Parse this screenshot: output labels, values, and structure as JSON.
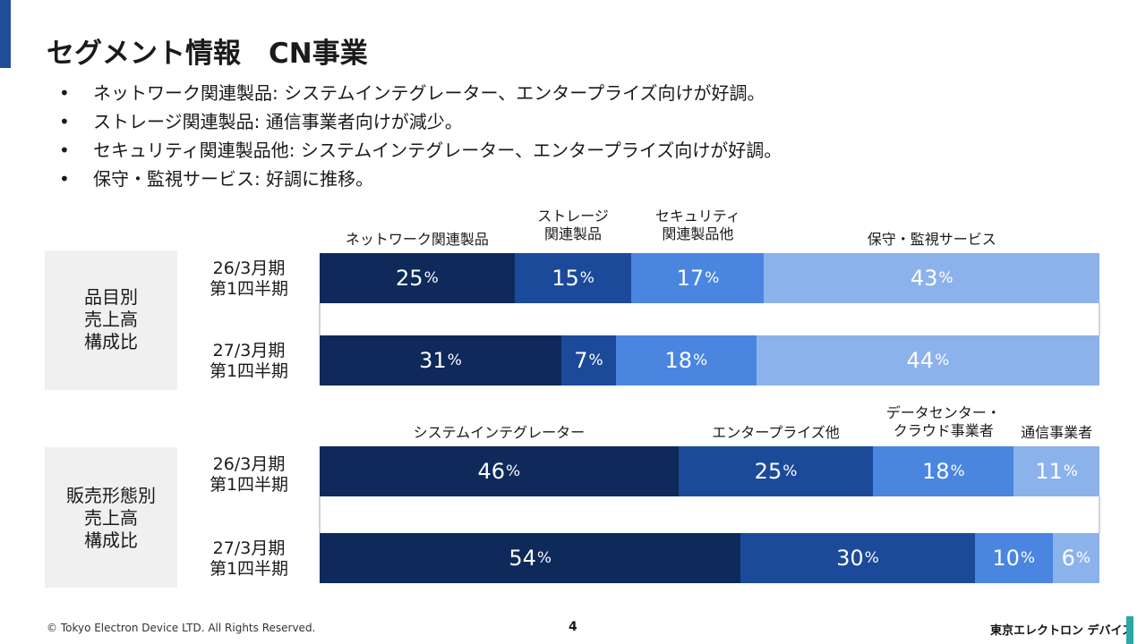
{
  "header": {
    "title": "セグメント情報　CN事業"
  },
  "bullets": [
    "ネットワーク関連製品: システムインテグレーター、エンタープライズ向けが好調。",
    "ストレージ関連製品: 通信事業者向けが減少。",
    "セキュリティ関連製品他: システムインテグレーター、エンタープライズ向けが好調。",
    "保守・監視サービス: 好調に推移。"
  ],
  "chart_data": [
    {
      "type": "bar",
      "stacked": true,
      "orientation": "horizontal",
      "row_title": "品目別\n売上高\n構成比",
      "categories": [
        "26/3月期\n第1四半期",
        "27/3月期\n第1四半期"
      ],
      "series": [
        {
          "name": "ネットワーク関連製品",
          "label": "ネットワーク関連製品",
          "values": [
            25,
            31
          ],
          "color": "#0d2a5b"
        },
        {
          "name": "ストレージ関連製品",
          "label": "ストレージ\n関連製品",
          "values": [
            15,
            7
          ],
          "color": "#1b4a9a"
        },
        {
          "name": "セキュリティ関連製品他",
          "label": "セキュリティ\n関連製品他",
          "values": [
            17,
            18
          ],
          "color": "#4a86e0"
        },
        {
          "name": "保守・監視サービス",
          "label": "保守・監視サービス",
          "values": [
            43,
            44
          ],
          "color": "#8cb2ec"
        }
      ],
      "unit": "%"
    },
    {
      "type": "bar",
      "stacked": true,
      "orientation": "horizontal",
      "row_title": "販売形態別\n売上高\n構成比",
      "categories": [
        "26/3月期\n第1四半期",
        "27/3月期\n第1四半期"
      ],
      "series": [
        {
          "name": "システムインテグレーター",
          "label": "システムインテグレーター",
          "values": [
            46,
            54
          ],
          "color": "#0d2a5b"
        },
        {
          "name": "エンタープライズ他",
          "label": "エンタープライズ他",
          "values": [
            25,
            30
          ],
          "color": "#1b4a9a"
        },
        {
          "name": "データセンター・クラウド事業者",
          "label": "データセンター・\nクラウド事業者",
          "values": [
            18,
            10
          ],
          "color": "#4a86e0"
        },
        {
          "name": "通信事業者",
          "label": "通信事業者",
          "values": [
            11,
            6
          ],
          "color": "#8cb2ec"
        }
      ],
      "unit": "%"
    }
  ],
  "footer": {
    "copyright": "© Tokyo Electron Device LTD. All Rights Reserved.",
    "page": "4",
    "logo": "東京エレクトロン デバイス"
  }
}
